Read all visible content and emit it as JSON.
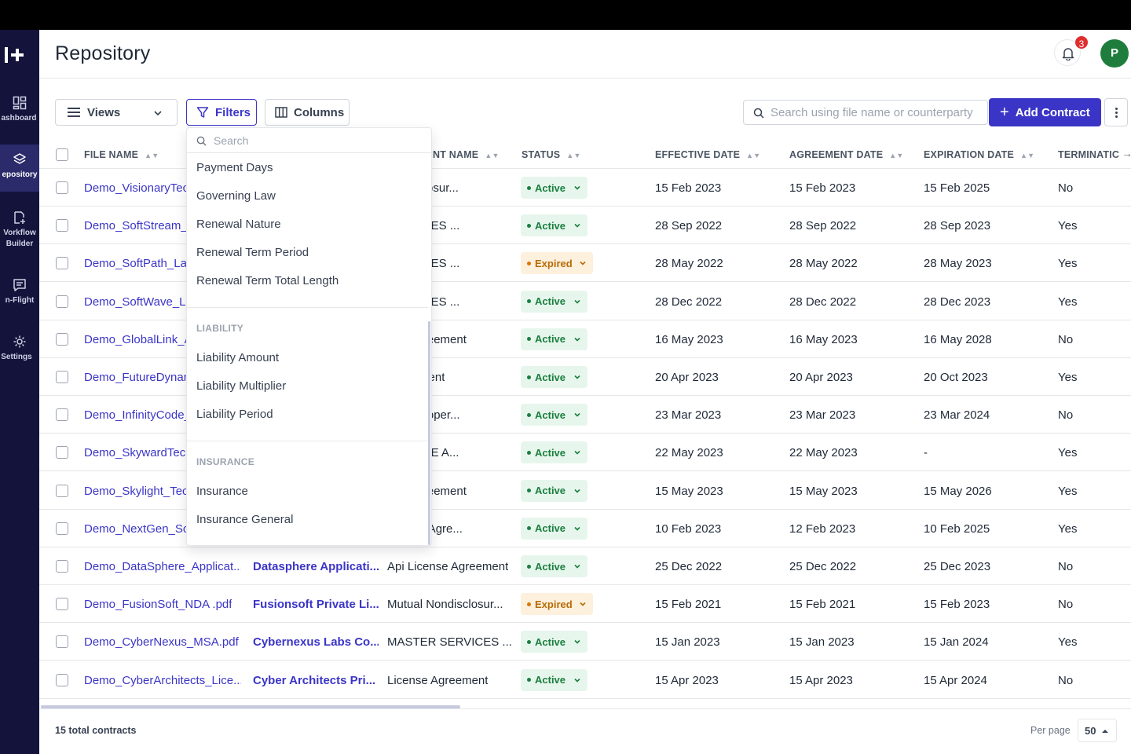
{
  "sidebar": {
    "items": [
      {
        "label": "ashboard",
        "icon": "dashboard-icon",
        "active": false
      },
      {
        "label": "epository",
        "icon": "layers-icon",
        "active": true
      },
      {
        "label": "Vorkflow",
        "label2": "Builder",
        "icon": "workflow-icon",
        "active": false
      },
      {
        "label": "n-Flight",
        "icon": "inflight-icon",
        "active": false
      },
      {
        "label": "Settings",
        "icon": "gear-icon",
        "active": false
      }
    ]
  },
  "header": {
    "title": "Repository",
    "notification_count": "3",
    "avatar_initial": "P"
  },
  "toolbar": {
    "views_label": "Views",
    "filters_label": "Filters",
    "columns_label": "Columns",
    "search_placeholder": "Search using file name or counterparty",
    "add_label": "Add Contract"
  },
  "table": {
    "headers": {
      "file_name": "FILE NAME",
      "agreement_name": "NT NAME",
      "status": "STATUS",
      "effective_date": "EFFECTIVE DATE",
      "agreement_date": "AGREEMENT DATE",
      "expiration_date": "EXPIRATION DATE",
      "termination": "TERMINATIC"
    },
    "rows": [
      {
        "file": "Demo_VisionaryTec",
        "counterparty": "",
        "agreement": "londisclosur...",
        "status": "Active",
        "effective": "15 Feb 2023",
        "agreement_date": "15 Feb 2023",
        "expiration": "15 Feb 2025",
        "termination": "No"
      },
      {
        "file": "Demo_SoftStream_I",
        "counterparty": "",
        "agreement": "SERVICES ...",
        "status": "Active",
        "effective": "28 Sep 2022",
        "agreement_date": "28 Sep 2022",
        "expiration": "28 Sep 2023",
        "termination": "Yes"
      },
      {
        "file": "Demo_SoftPath_Lab",
        "counterparty": "",
        "agreement": "SERVICES ...",
        "status": "Expired",
        "effective": "28 May 2022",
        "agreement_date": "28 May 2022",
        "expiration": "28 May 2023",
        "termination": "Yes"
      },
      {
        "file": "Demo_SoftWave_La",
        "counterparty": "",
        "agreement": "SERVICES ...",
        "status": "Active",
        "effective": "28 Dec 2022",
        "agreement_date": "28 Dec 2022",
        "expiration": "28 Dec 2023",
        "termination": "Yes"
      },
      {
        "file": "Demo_GlobalLink_A",
        "counterparty": "",
        "agreement": "nse Agreement",
        "status": "Active",
        "effective": "16 May 2023",
        "agreement_date": "16 May 2023",
        "expiration": "16 May 2028",
        "termination": "No"
      },
      {
        "file": "Demo_FutureDynan",
        "counterparty": "",
        "agreement": "Agreement",
        "status": "Active",
        "effective": "20 Apr 2023",
        "agreement_date": "20 Apr 2023",
        "expiration": "20 Oct 2023",
        "termination": "Yes"
      },
      {
        "file": "Demo_InfinityCode_",
        "counterparty": "",
        "agreement": "ft Developer...",
        "status": "Active",
        "effective": "23 Mar 2023",
        "agreement_date": "23 Mar 2023",
        "expiration": "23 Mar 2024",
        "termination": "No"
      },
      {
        "file": "Demo_SkywardTecl",
        "counterparty": "",
        "agreement": "SERVICE A...",
        "status": "Active",
        "effective": "22 May 2023",
        "agreement_date": "22 May 2023",
        "expiration": "-",
        "termination": "Yes"
      },
      {
        "file": "Demo_Skylight_Tec",
        "counterparty": "",
        "agreement": "nse Agreement",
        "status": "Active",
        "effective": "15 May 2023",
        "agreement_date": "15 May 2023",
        "expiration": "15 May 2026",
        "termination": "Yes"
      },
      {
        "file": "Demo_NextGen_So",
        "counterparty": "",
        "agreement": "closure Agre...",
        "status": "Active",
        "effective": "10 Feb 2023",
        "agreement_date": "12 Feb 2023",
        "expiration": "10 Feb 2025",
        "termination": "Yes"
      },
      {
        "file": "Demo_DataSphere_Applicat...",
        "counterparty": "Datasphere Applicati...",
        "agreement": "Api License Agreement",
        "status": "Active",
        "effective": "25 Dec 2022",
        "agreement_date": "25 Dec 2022",
        "expiration": "25 Dec 2023",
        "termination": "No"
      },
      {
        "file": "Demo_FusionSoft_NDA .pdf",
        "counterparty": "Fusionsoft Private Li...",
        "agreement": "Mutual Nondisclosur...",
        "status": "Expired",
        "effective": "15 Feb 2021",
        "agreement_date": "15 Feb 2021",
        "expiration": "15 Feb 2023",
        "termination": "No"
      },
      {
        "file": "Demo_CyberNexus_MSA.pdf",
        "counterparty": "Cybernexus Labs Co...",
        "agreement": "MASTER SERVICES ...",
        "status": "Active",
        "effective": "15 Jan 2023",
        "agreement_date": "15 Jan 2023",
        "expiration": "15 Jan 2024",
        "termination": "Yes"
      },
      {
        "file": "Demo_CyberArchitects_Lice...",
        "counterparty": "Cyber Architects Pri...",
        "agreement": "License Agreement",
        "status": "Active",
        "effective": "15 Apr 2023",
        "agreement_date": "15 Apr 2023",
        "expiration": "15 Apr 2024",
        "termination": "No"
      }
    ]
  },
  "filter_dropdown": {
    "search_placeholder": "Search",
    "items_top": [
      "Payment Days",
      "Governing Law",
      "Renewal Nature",
      "Renewal Term Period",
      "Renewal Term Total Length"
    ],
    "group_liability": "LIABILITY",
    "items_liability": [
      "Liability Amount",
      "Liability Multiplier",
      "Liability Period"
    ],
    "group_insurance": "INSURANCE",
    "items_insurance": [
      "Insurance",
      "Insurance General"
    ]
  },
  "footer": {
    "total": "15 total contracts",
    "per_page_label": "Per page",
    "per_page_value": "50"
  },
  "colors": {
    "brand": "#3b35c7",
    "sidebar_bg": "#14133b",
    "active_status": "#1a7f3f",
    "expired_status": "#b76b07"
  }
}
